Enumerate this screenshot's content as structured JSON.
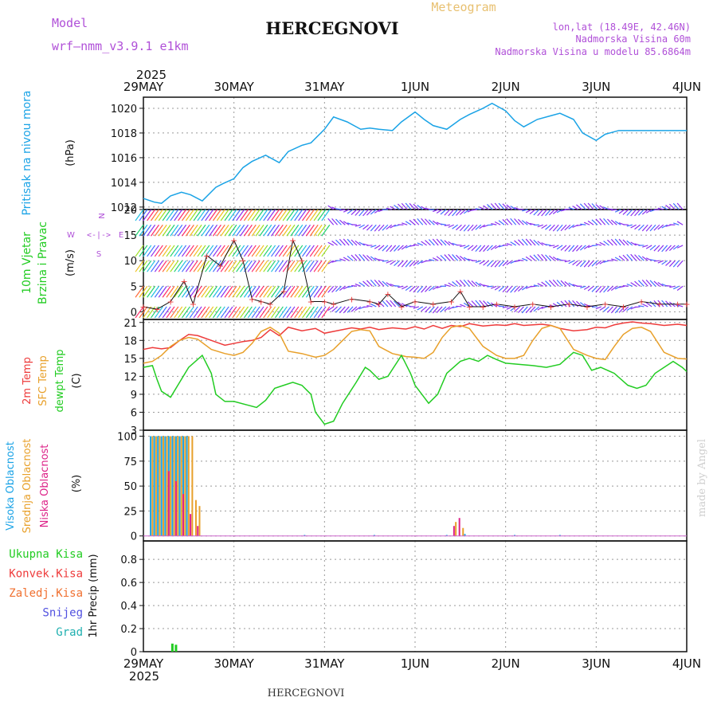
{
  "header": {
    "model_label": "Model",
    "model_name": "wrf–nmm_v3.9.1  e1km",
    "title": "HERCEGNOVI",
    "meteogram_label": "Meteogram",
    "coords": "lon,lat (18.49E, 42.46N)",
    "altitude": "Nadmorska Visina 60m",
    "model_altitude": "Nadmorska Visina u modelu 85.6864m",
    "year_top": "2025",
    "year_bottom": "2025",
    "footer_title": "HERCEGNOVI",
    "watermark": "made by Angel"
  },
  "colors": {
    "pressure": "#1aa3e6",
    "temp2m": "#ee3b3b",
    "sfc_temp": "#e8a02a",
    "dewpt": "#22cc22",
    "high_cloud": "#1aa3e6",
    "mid_cloud": "#e8a02a",
    "low_cloud": "#dd2288",
    "purple_text": "#b050d8",
    "precip_total": "#22cc22"
  },
  "chart_data": [
    {
      "panel": "pressure",
      "type": "line",
      "ylabel_lines": [
        "Pritisak na nivou mora",
        "(hPa)"
      ],
      "y_ticks": [
        1012,
        1014,
        1016,
        1018,
        1020
      ],
      "ylim": [
        1011.8,
        1020.9
      ],
      "x_tick_labels": [
        "29MAY",
        "30MAY",
        "31MAY",
        "1JUN",
        "2JUN",
        "3JUN",
        "4JUN"
      ],
      "grid": true,
      "x_days": [
        0,
        0.12,
        0.2,
        0.3,
        0.42,
        0.52,
        0.65,
        0.8,
        0.88,
        1.0,
        1.1,
        1.2,
        1.35,
        1.5,
        1.6,
        1.75,
        1.85,
        2.0,
        2.1,
        2.25,
        2.4,
        2.5,
        2.6,
        2.75,
        2.85,
        3.0,
        3.1,
        3.2,
        3.35,
        3.5,
        3.6,
        3.75,
        3.85,
        4.0,
        4.1,
        4.2,
        4.35,
        4.5,
        4.6,
        4.75,
        4.85,
        5.0,
        5.1,
        5.25,
        5.4,
        5.5,
        5.6,
        5.75,
        5.85,
        6.0
      ],
      "y_values": [
        1012.7,
        1012.4,
        1012.3,
        1012.9,
        1013.2,
        1013.0,
        1012.5,
        1013.6,
        1013.9,
        1014.3,
        1015.2,
        1015.7,
        1016.2,
        1015.6,
        1016.5,
        1017.0,
        1017.2,
        1018.3,
        1019.3,
        1018.9,
        1018.3,
        1018.4,
        1018.3,
        1018.2,
        1018.9,
        1019.7,
        1019.1,
        1018.6,
        1018.3,
        1019.1,
        1019.5,
        1020.0,
        1020.4,
        1019.8,
        1019.0,
        1018.5,
        1019.1,
        1019.4,
        1019.6,
        1019.1,
        1018.0,
        1017.4,
        1017.9,
        1018.2,
        1018.2,
        1018.2,
        1018.2,
        1018.2,
        1018.2,
        1018.2
      ]
    },
    {
      "panel": "wind",
      "type": "line",
      "ylabel_lines": [
        "10m Vjetar",
        "Brzina i Pravac",
        "(m/s)"
      ],
      "compass_labels": [
        "N",
        "E",
        "S",
        "W"
      ],
      "y_ticks": [
        0,
        5,
        10,
        15,
        20
      ],
      "ylim": [
        -1.5,
        20
      ],
      "grid": true,
      "speed_x_days": [
        0,
        0.15,
        0.3,
        0.45,
        0.55,
        0.7,
        0.85,
        1.0,
        1.1,
        1.2,
        1.3,
        1.4,
        1.55,
        1.65,
        1.75,
        1.85,
        2.0,
        2.1,
        2.3,
        2.5,
        2.6,
        2.7,
        2.85,
        3.0,
        3.2,
        3.4,
        3.5,
        3.6,
        3.75,
        3.9,
        4.1,
        4.3,
        4.5,
        4.7,
        4.9,
        5.1,
        5.3,
        5.5,
        5.7,
        5.9,
        6.0
      ],
      "speed_values": [
        1.0,
        0.5,
        2.0,
        6.0,
        1.5,
        11.0,
        9.0,
        14.0,
        10.0,
        2.5,
        2.0,
        1.5,
        4.0,
        14.0,
        10.0,
        2.0,
        2.0,
        1.5,
        2.5,
        2.0,
        1.5,
        3.5,
        1.0,
        2.0,
        1.5,
        2.0,
        4.0,
        1.0,
        1.0,
        1.5,
        1.0,
        1.5,
        1.0,
        1.5,
        1.0,
        1.5,
        1.0,
        2.0,
        1.5,
        1.5,
        1.5
      ],
      "barb_rows_at": [
        1,
        5,
        10,
        13,
        17,
        20
      ]
    },
    {
      "panel": "temperature",
      "type": "line",
      "ylabel_lines": [
        "2m Temp",
        "SFC Temp",
        "dewpt Temp",
        "(C)"
      ],
      "y_ticks": [
        3,
        6,
        9,
        12,
        15,
        18,
        21
      ],
      "ylim": [
        3,
        21.5
      ],
      "grid": true,
      "series": [
        {
          "name": "2m Temp",
          "x_days": [
            0,
            0.1,
            0.2,
            0.3,
            0.4,
            0.5,
            0.6,
            0.75,
            0.9,
            1.0,
            1.1,
            1.2,
            1.3,
            1.4,
            1.5,
            1.6,
            1.75,
            1.9,
            2.0,
            2.1,
            2.2,
            2.3,
            2.4,
            2.5,
            2.6,
            2.75,
            2.9,
            3.0,
            3.1,
            3.2,
            3.3,
            3.4,
            3.5,
            3.6,
            3.75,
            3.9,
            4.0,
            4.1,
            4.2,
            4.3,
            4.4,
            4.5,
            4.6,
            4.75,
            4.9,
            5.0,
            5.1,
            5.2,
            5.3,
            5.4,
            5.5,
            5.6,
            5.75,
            5.9,
            6.0
          ],
          "values": [
            16.5,
            16.8,
            16.6,
            16.8,
            18.0,
            19.0,
            18.8,
            18.0,
            17.2,
            17.5,
            17.8,
            18.0,
            18.5,
            19.8,
            18.8,
            20.2,
            19.6,
            20.0,
            19.2,
            19.5,
            19.8,
            20.1,
            19.9,
            20.2,
            19.8,
            20.1,
            19.9,
            20.3,
            19.9,
            20.5,
            20.0,
            20.5,
            20.3,
            20.8,
            20.4,
            20.6,
            20.5,
            20.8,
            20.5,
            20.6,
            20.7,
            20.5,
            20.0,
            19.6,
            19.8,
            20.2,
            20.1,
            20.6,
            20.9,
            21.1,
            20.9,
            20.8,
            20.5,
            20.7,
            20.5
          ]
        },
        {
          "name": "SFC Temp",
          "x_days": [
            0,
            0.1,
            0.2,
            0.3,
            0.4,
            0.5,
            0.6,
            0.75,
            0.9,
            1.0,
            1.1,
            1.2,
            1.3,
            1.4,
            1.5,
            1.6,
            1.75,
            1.9,
            2.0,
            2.1,
            2.2,
            2.3,
            2.4,
            2.5,
            2.6,
            2.75,
            2.9,
            3.0,
            3.1,
            3.2,
            3.3,
            3.4,
            3.5,
            3.6,
            3.75,
            3.9,
            4.0,
            4.1,
            4.2,
            4.3,
            4.4,
            4.5,
            4.6,
            4.75,
            4.9,
            5.0,
            5.1,
            5.2,
            5.3,
            5.4,
            5.5,
            5.6,
            5.75,
            5.9,
            6.0
          ],
          "values": [
            14.2,
            14.5,
            15.5,
            17.0,
            18.0,
            18.5,
            18.2,
            16.5,
            15.8,
            15.5,
            16.0,
            17.5,
            19.5,
            20.2,
            19.2,
            16.2,
            15.8,
            15.2,
            15.5,
            16.5,
            18.0,
            19.5,
            19.8,
            19.6,
            17.0,
            15.8,
            15.3,
            15.2,
            15.0,
            16.0,
            18.5,
            20.2,
            20.5,
            20.0,
            17.0,
            15.5,
            15.0,
            15.0,
            15.5,
            18.0,
            20.0,
            20.5,
            20.0,
            16.5,
            15.5,
            15.0,
            14.8,
            17.0,
            19.0,
            20.0,
            20.2,
            19.5,
            16.0,
            15.0,
            14.9
          ]
        },
        {
          "name": "dewpt Temp",
          "x_days": [
            0,
            0.1,
            0.15,
            0.2,
            0.3,
            0.4,
            0.5,
            0.65,
            0.75,
            0.8,
            0.9,
            1.0,
            1.15,
            1.25,
            1.35,
            1.45,
            1.55,
            1.65,
            1.75,
            1.85,
            1.9,
            2.0,
            2.1,
            2.2,
            2.35,
            2.45,
            2.5,
            2.6,
            2.7,
            2.85,
            2.95,
            3.0,
            3.1,
            3.15,
            3.25,
            3.35,
            3.5,
            3.6,
            3.7,
            3.8,
            3.9,
            4.0,
            4.15,
            4.3,
            4.45,
            4.6,
            4.75,
            4.85,
            4.95,
            5.05,
            5.2,
            5.35,
            5.45,
            5.55,
            5.65,
            5.75,
            5.85,
            5.95,
            6.0
          ],
          "values": [
            13.5,
            13.8,
            11.5,
            9.5,
            8.5,
            11.0,
            13.5,
            15.5,
            12.5,
            9.0,
            7.8,
            7.8,
            7.2,
            6.8,
            8.0,
            10.0,
            10.5,
            11.0,
            10.5,
            9.0,
            6.0,
            4.0,
            4.5,
            7.5,
            11.0,
            13.5,
            13.0,
            11.5,
            12.0,
            15.5,
            12.5,
            10.5,
            8.5,
            7.5,
            9.0,
            12.5,
            14.5,
            15.0,
            14.5,
            15.5,
            14.8,
            14.2,
            14.0,
            13.8,
            13.5,
            14.0,
            16.0,
            15.5,
            13.0,
            13.5,
            12.5,
            10.5,
            10.0,
            10.5,
            12.5,
            13.5,
            14.5,
            13.5,
            12.8
          ]
        }
      ]
    },
    {
      "panel": "cloud",
      "type": "bar",
      "ylabel_lines": [
        "Visoka Oblacnost",
        "Srednja Oblacnost",
        "Niska Oblacnost",
        "(%)"
      ],
      "y_ticks": [
        0,
        25,
        50,
        75,
        100
      ],
      "ylim": [
        -5,
        106
      ],
      "grid": true,
      "series": [
        {
          "name": "Visoka Oblacnost",
          "x_days": [
            0.08,
            0.12,
            0.16,
            0.2,
            0.24,
            0.28,
            0.32,
            0.36,
            0.4,
            0.44,
            0.48,
            1.78,
            2.55,
            3.35,
            3.55,
            4.1,
            4.6
          ],
          "values": [
            100,
            100,
            100,
            100,
            100,
            100,
            100,
            100,
            100,
            100,
            100,
            1,
            1,
            1,
            2,
            1,
            1
          ]
        },
        {
          "name": "Srednja Oblacnost",
          "x_days": [
            0.1,
            0.14,
            0.18,
            0.22,
            0.26,
            0.3,
            0.34,
            0.38,
            0.42,
            0.46,
            0.5,
            0.54,
            0.58,
            0.62,
            3.45,
            3.53
          ],
          "values": [
            100,
            100,
            100,
            100,
            100,
            100,
            100,
            100,
            100,
            100,
            100,
            100,
            36,
            30,
            14,
            8
          ]
        },
        {
          "name": "Niska Oblacnost",
          "x_days": [
            0.28,
            0.36,
            0.44,
            0.52,
            0.6,
            3.43,
            3.49
          ],
          "values": [
            65,
            55,
            42,
            22,
            10,
            10,
            18
          ]
        }
      ]
    },
    {
      "panel": "precip",
      "type": "bar",
      "ylabel_lines": [
        "1hr Precip (mm)"
      ],
      "legend": [
        "Ukupna  Kisa",
        "Konvek.Kisa",
        "Zaledj.Kisa",
        "Snijeg",
        "Grad"
      ],
      "y_ticks": [
        0,
        0.2,
        0.4,
        0.6,
        0.8
      ],
      "ylim": [
        0,
        0.96
      ],
      "grid": true,
      "series": [
        {
          "name": "Ukupna  Kisa",
          "x_days": [
            0.32,
            0.36
          ],
          "values": [
            0.07,
            0.06
          ]
        }
      ]
    }
  ]
}
